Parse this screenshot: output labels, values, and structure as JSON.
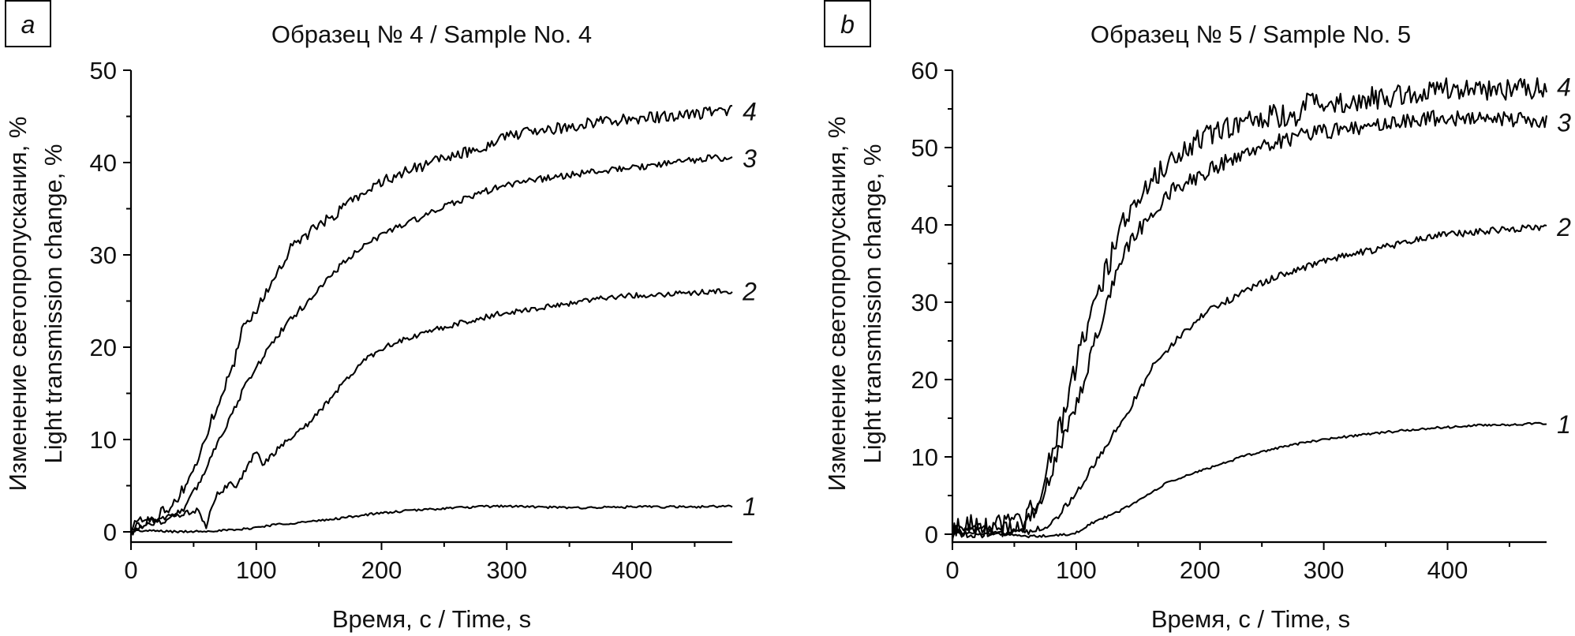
{
  "chart_data": [
    {
      "type": "line",
      "panel_letter": "a",
      "title": "Образец № 4 / Sample No. 4",
      "xlabel": "Время, с / Time, s",
      "ylabel": [
        "Изменение светопропускания, %",
        "Light transmission change, %"
      ],
      "xlim": [
        0,
        480
      ],
      "ylim": [
        0,
        50
      ],
      "xticks": [
        0,
        100,
        200,
        300,
        400
      ],
      "xminor": [
        50,
        150,
        250,
        350,
        450
      ],
      "yticks": [
        0,
        10,
        20,
        30,
        40,
        50
      ],
      "yminor": [
        5,
        15,
        25,
        35,
        45
      ],
      "grid": false,
      "legend": "inline labels at right end of each curve",
      "series": [
        {
          "name": "1",
          "noise": 0.12,
          "x": [
            0,
            20,
            40,
            60,
            85,
            116,
            151,
            190,
            222,
            257,
            296,
            349,
            402,
            450,
            480
          ],
          "y": [
            0.1,
            0.1,
            0.0,
            0.1,
            0.2,
            0.8,
            1.2,
            1.9,
            2.3,
            2.6,
            2.8,
            2.6,
            2.7,
            2.7,
            2.8
          ]
        },
        {
          "name": "2",
          "noise": 0.3,
          "x": [
            0,
            4,
            20,
            32,
            53,
            58,
            60,
            68,
            81,
            83,
            91,
            101,
            105,
            123,
            144,
            165,
            186,
            203,
            245,
            297,
            335,
            377,
            419,
            480
          ],
          "y": [
            0.0,
            1.3,
            1.3,
            1.7,
            2.3,
            1.0,
            0.6,
            4.0,
            5.4,
            4.6,
            6.6,
            9.0,
            7.3,
            9.7,
            12.0,
            15.4,
            18.6,
            20.1,
            22.0,
            23.7,
            24.4,
            25.4,
            25.7,
            26.1
          ]
        },
        {
          "name": "3",
          "noise": 0.35,
          "x": [
            0,
            10,
            26,
            43,
            56,
            68,
            81,
            93,
            106,
            112,
            123,
            140,
            171,
            203,
            234,
            266,
            297,
            335,
            377,
            419,
            461,
            480
          ],
          "y": [
            0.0,
            0.8,
            1.1,
            2.6,
            5.7,
            9.4,
            12.9,
            16.3,
            19.1,
            20.3,
            22.3,
            24.8,
            29.4,
            32.5,
            34.2,
            36.1,
            37.5,
            38.4,
            39.1,
            39.7,
            40.5,
            40.5
          ]
        },
        {
          "name": "4",
          "noise": 0.6,
          "x": [
            0,
            10,
            18,
            35,
            45,
            56,
            64,
            72,
            81,
            89,
            98,
            110,
            127,
            150,
            182,
            213,
            245,
            276,
            297,
            335,
            377,
            419,
            480
          ],
          "y": [
            0.0,
            1.0,
            1.6,
            3.1,
            5.4,
            8.6,
            12.0,
            14.9,
            17.7,
            22.0,
            23.7,
            26.3,
            30.8,
            33.1,
            36.5,
            38.8,
            40.2,
            41.4,
            42.8,
            43.6,
            44.5,
            44.9,
            45.6
          ]
        }
      ]
    },
    {
      "type": "line",
      "panel_letter": "b",
      "title": "Образец № 5 / Sample No. 5",
      "xlabel": "Время, с / Time, s",
      "ylabel": [
        "Изменение светопропускания, %",
        "Light transmission change, %"
      ],
      "xlim": [
        0,
        480
      ],
      "ylim": [
        0,
        60
      ],
      "xticks": [
        0,
        100,
        200,
        300,
        400
      ],
      "xminor": [
        50,
        150,
        250,
        350,
        450
      ],
      "yticks": [
        0,
        10,
        20,
        30,
        40,
        50,
        60
      ],
      "yminor": [
        5,
        15,
        25,
        35,
        45,
        55
      ],
      "grid": false,
      "legend": "inline labels at right end of each curve",
      "series": [
        {
          "name": "1",
          "noise": 0.15,
          "x": [
            0,
            20,
            40,
            60,
            80,
            98,
            112,
            134,
            155,
            174,
            206,
            238,
            269,
            301,
            344,
            386,
            429,
            480
          ],
          "y": [
            0.2,
            0.1,
            0.0,
            -0.3,
            -0.2,
            0.0,
            1.4,
            2.9,
            4.8,
            6.7,
            8.5,
            10.2,
            11.4,
            12.3,
            13.1,
            13.7,
            14.1,
            14.3
          ]
        },
        {
          "name": "2",
          "noise": 0.45,
          "x": [
            0,
            10,
            30,
            50,
            66,
            81,
            95,
            112,
            127,
            144,
            165,
            185,
            204,
            231,
            263,
            301,
            344,
            386,
            429,
            480
          ],
          "y": [
            0.3,
            0.8,
            0.6,
            0.3,
            0.5,
            1.5,
            4.3,
            8.3,
            12.1,
            16.5,
            22.6,
            25.7,
            28.6,
            31.0,
            33.4,
            35.4,
            36.9,
            38.5,
            39.2,
            39.8
          ]
        },
        {
          "name": "3",
          "noise": 1.0,
          "x": [
            0,
            10,
            30,
            45,
            59,
            70,
            81,
            91,
            102,
            112,
            123,
            138,
            159,
            178,
            202,
            223,
            252,
            278,
            303,
            344,
            386,
            429,
            480
          ],
          "y": [
            0.2,
            0.5,
            0.5,
            0.6,
            1.2,
            3.9,
            8.3,
            13.1,
            17.5,
            23.3,
            29.1,
            36.4,
            41.2,
            44.6,
            46.6,
            48.3,
            50.4,
            51.4,
            52.1,
            52.9,
            53.8,
            53.8,
            53.3
          ]
        },
        {
          "name": "4",
          "noise": 1.5,
          "x": [
            0,
            8,
            30,
            50,
            57,
            66,
            76,
            83,
            89,
            95,
            102,
            108,
            115,
            125,
            138,
            155,
            176,
            202,
            227,
            252,
            278,
            291,
            303,
            344,
            386,
            429,
            480
          ],
          "y": [
            0.3,
            1.1,
            1.0,
            1.1,
            1.4,
            3.6,
            7.7,
            12.4,
            14.8,
            18.9,
            23.3,
            26.0,
            30.1,
            34.4,
            40.5,
            44.9,
            48.0,
            51.4,
            52.8,
            54.1,
            54.1,
            56.8,
            55.5,
            56.5,
            57.5,
            57.5,
            57.9
          ]
        }
      ]
    }
  ]
}
